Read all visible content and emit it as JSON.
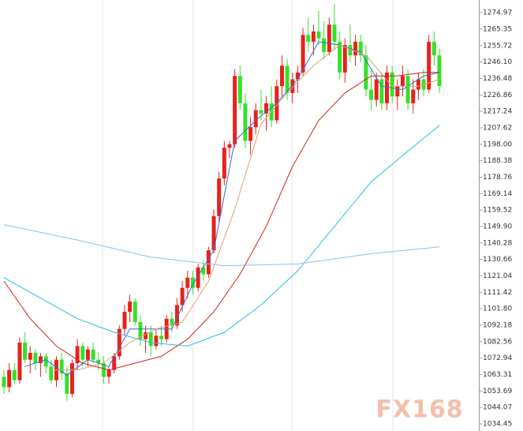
{
  "chart_data": {
    "type": "candlestick",
    "ylim": [
      1030.3,
      1282.4
    ],
    "yticks": [
      1274.97,
      1265.35,
      1255.72,
      {
        "value": 1246.1,
        "label": "1246.10"
      },
      1236.48,
      1226.86,
      1217.24,
      1207.62,
      {
        "value": 1198,
        "label": "1198.00"
      },
      1188.38,
      1178.76,
      1169.14,
      1159.52,
      {
        "value": 1149.9,
        "label": "1149.90"
      },
      1140.28,
      1130.66,
      1121.04,
      1111.42,
      {
        "value": 1101.8,
        "label": "1101.80"
      },
      1092.18,
      1082.56,
      1072.94,
      1063.31,
      1053.69,
      1044.07,
      1034.45
    ],
    "up_color": "#e8211c",
    "down_color": "#35e02a",
    "open": [
      1062,
      1056,
      1066,
      1060,
      1082,
      1072,
      1076,
      1070,
      1074,
      1068,
      1060,
      1072,
      1064,
      1052,
      1070,
      1080,
      1072,
      1078,
      1072,
      1070,
      1062,
      1066,
      1074,
      1090,
      1100,
      1106,
      1094,
      1084,
      1088,
      1080,
      1086,
      1084,
      1096,
      1092,
      1104,
      1114,
      1120,
      1114,
      1126,
      1122,
      1136,
      1156,
      1178,
      1196,
      1198,
      1238,
      1222,
      1200,
      1208,
      1218,
      1216,
      1222,
      1212,
      1232,
      1244,
      1228,
      1236,
      1240,
      1262,
      1258,
      1264,
      1260,
      1252,
      1268,
      1258,
      1240,
      1256,
      1250,
      1258,
      1250,
      1230,
      1224,
      1236,
      1222,
      1240,
      1226,
      1232,
      1238,
      1222,
      1230,
      1236,
      1230,
      1258,
      1250
    ],
    "high": [
      1066,
      1070,
      1070,
      1085,
      1088,
      1080,
      1078,
      1076,
      1076,
      1072,
      1074,
      1076,
      1068,
      1072,
      1084,
      1082,
      1080,
      1082,
      1076,
      1074,
      1068,
      1076,
      1092,
      1104,
      1110,
      1108,
      1098,
      1092,
      1092,
      1090,
      1092,
      1098,
      1100,
      1108,
      1118,
      1124,
      1124,
      1128,
      1130,
      1138,
      1160,
      1182,
      1200,
      1200,
      1242,
      1244,
      1228,
      1214,
      1222,
      1230,
      1226,
      1232,
      1236,
      1250,
      1248,
      1240,
      1244,
      1266,
      1272,
      1268,
      1276,
      1270,
      1272,
      1280,
      1264,
      1260,
      1268,
      1262,
      1262,
      1256,
      1242,
      1240,
      1240,
      1244,
      1244,
      1236,
      1244,
      1242,
      1236,
      1240,
      1242,
      1262,
      1264,
      1254
    ],
    "low": [
      1052,
      1053,
      1058,
      1058,
      1070,
      1064,
      1066,
      1062,
      1064,
      1058,
      1056,
      1060,
      1048,
      1050,
      1066,
      1068,
      1068,
      1070,
      1066,
      1058,
      1058,
      1064,
      1072,
      1086,
      1094,
      1092,
      1080,
      1076,
      1074,
      1078,
      1080,
      1082,
      1088,
      1090,
      1100,
      1108,
      1110,
      1112,
      1118,
      1120,
      1134,
      1152,
      1174,
      1190,
      1196,
      1218,
      1196,
      1192,
      1204,
      1212,
      1206,
      1208,
      1210,
      1226,
      1224,
      1222,
      1228,
      1238,
      1252,
      1250,
      1256,
      1248,
      1250,
      1254,
      1236,
      1234,
      1246,
      1244,
      1246,
      1226,
      1218,
      1220,
      1218,
      1218,
      1222,
      1218,
      1226,
      1218,
      1216,
      1224,
      1226,
      1228,
      1244,
      1228
    ],
    "close": [
      1056,
      1066,
      1060,
      1082,
      1072,
      1076,
      1070,
      1074,
      1068,
      1060,
      1072,
      1064,
      1052,
      1070,
      1080,
      1072,
      1078,
      1072,
      1070,
      1062,
      1066,
      1074,
      1090,
      1100,
      1106,
      1094,
      1084,
      1088,
      1080,
      1086,
      1084,
      1096,
      1092,
      1104,
      1114,
      1120,
      1114,
      1126,
      1122,
      1136,
      1156,
      1178,
      1196,
      1198,
      1238,
      1222,
      1200,
      1208,
      1218,
      1216,
      1222,
      1212,
      1232,
      1244,
      1228,
      1236,
      1240,
      1262,
      1258,
      1264,
      1260,
      1252,
      1268,
      1258,
      1240,
      1256,
      1250,
      1258,
      1250,
      1230,
      1224,
      1236,
      1222,
      1240,
      1226,
      1232,
      1238,
      1222,
      1230,
      1236,
      1230,
      1258,
      1250,
      1232
    ],
    "series": [
      {
        "color": "#2f6fdc",
        "x": [
          4,
          8,
          12,
          16,
          20,
          24,
          28,
          32,
          36,
          40,
          44,
          48,
          52,
          56,
          60,
          64,
          68,
          72,
          76,
          80,
          83
        ],
        "values": [
          1068,
          1072,
          1063,
          1072,
          1068,
          1090,
          1090,
          1090,
          1116,
          1136,
          1200,
          1212,
          1222,
          1236,
          1258,
          1256,
          1252,
          1232,
          1230,
          1238,
          1240
        ]
      },
      {
        "color": "#e0a070",
        "x": [
          9,
          14,
          19,
          24,
          29,
          34,
          39,
          44,
          49,
          54,
          59,
          64,
          69,
          74,
          79,
          83
        ],
        "values": [
          1066,
          1066,
          1070,
          1082,
          1090,
          1094,
          1118,
          1160,
          1210,
          1228,
          1244,
          1256,
          1250,
          1232,
          1232,
          1236
        ]
      },
      {
        "color": "#d62020",
        "x": [
          0,
          5,
          10,
          15,
          20,
          25,
          30,
          35,
          40,
          45,
          50,
          55,
          60,
          65,
          70,
          75,
          80,
          83
        ],
        "values": [
          1118,
          1096,
          1080,
          1070,
          1066,
          1070,
          1074,
          1084,
          1100,
          1122,
          1150,
          1185,
          1212,
          1228,
          1238,
          1238,
          1240,
          1240
        ]
      },
      {
        "color": "#22c0e0",
        "x": [
          0,
          7,
          14,
          21,
          28,
          35,
          42,
          49,
          56,
          63,
          70,
          77,
          83
        ],
        "values": [
          1120,
          1108,
          1096,
          1088,
          1082,
          1080,
          1088,
          1104,
          1124,
          1150,
          1176,
          1194,
          1209
        ]
      },
      {
        "color": "#8fc0ea",
        "x": [
          0,
          14,
          28,
          42,
          56,
          70,
          83
        ],
        "values": [
          1151,
          1142,
          1132,
          1127,
          1128,
          1134,
          1138
        ]
      }
    ],
    "watermark": "FX168"
  }
}
